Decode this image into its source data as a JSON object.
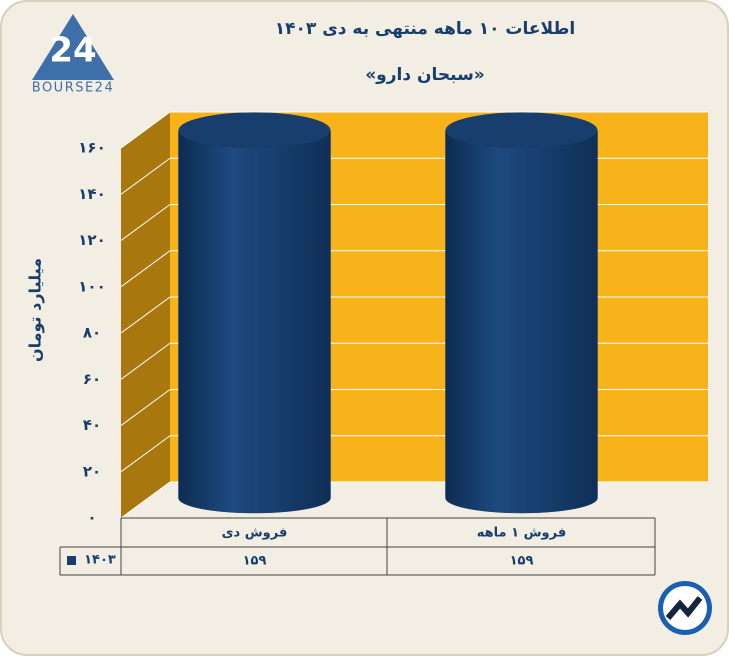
{
  "logo": {
    "mark": "24",
    "text": "BOURSE24"
  },
  "chart_data": {
    "type": "bar3d",
    "title": "اطلاعات ۱۰ ماهه منتهی به دی ۱۴۰۳",
    "subtitle": "«سبحان دارو»",
    "y_label": "میلیارد تومان",
    "categories": [
      "فروش دی",
      "فروش ۱ ماهه"
    ],
    "series": [
      {
        "name": "۱۴۰۳",
        "color": "#173e6c",
        "values": [
          159,
          159
        ],
        "value_labels": [
          "۱۵۹",
          "۱۵۹"
        ]
      }
    ],
    "ylim": [
      0,
      160
    ],
    "yticks": [
      {
        "value": 0,
        "label": "۰"
      },
      {
        "value": 20,
        "label": "۲۰"
      },
      {
        "value": 40,
        "label": "۴۰"
      },
      {
        "value": 60,
        "label": "۶۰"
      },
      {
        "value": 80,
        "label": "۸۰"
      },
      {
        "value": 100,
        "label": "۱۰۰"
      },
      {
        "value": 120,
        "label": "۱۲۰"
      },
      {
        "value": 140,
        "label": "۱۴۰"
      },
      {
        "value": 160,
        "label": "۱۶۰"
      }
    ],
    "grid": true
  }
}
